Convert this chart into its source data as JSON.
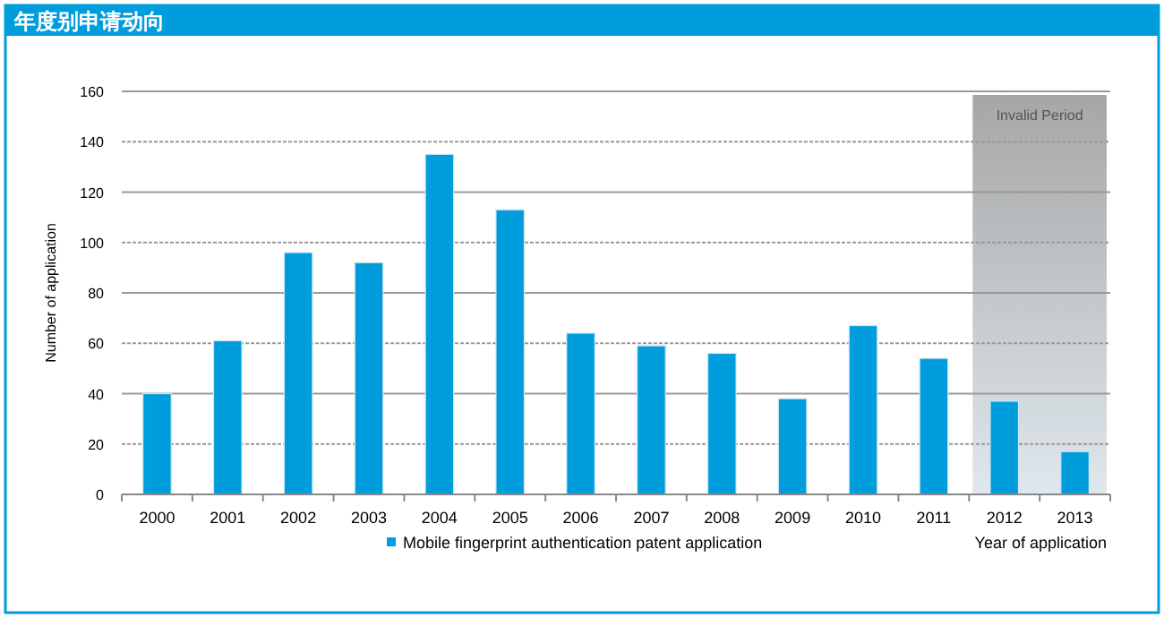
{
  "chart_data": {
    "type": "bar",
    "title": "年度别申请动向",
    "categories": [
      "2000",
      "2001",
      "2002",
      "2003",
      "2004",
      "2005",
      "2006",
      "2007",
      "2008",
      "2009",
      "2010",
      "2011",
      "2012",
      "2013"
    ],
    "series": [
      {
        "name": "Mobile fingerprint authentication patent application",
        "color": "#009ddc",
        "values": [
          40,
          61,
          96,
          92,
          135,
          113,
          64,
          59,
          56,
          38,
          67,
          54,
          37,
          17
        ]
      }
    ],
    "xlabel": "Year of application",
    "ylabel": "Number of application",
    "ylim": [
      0,
      160
    ],
    "yticks": [
      0,
      20,
      40,
      60,
      80,
      100,
      120,
      140,
      160
    ],
    "bands": [
      {
        "axis": "x",
        "from": "2012",
        "to": "2013",
        "label": "Invalid Period",
        "color": "#a6a6a6"
      }
    ],
    "grid": "y",
    "legend": "bottom"
  }
}
